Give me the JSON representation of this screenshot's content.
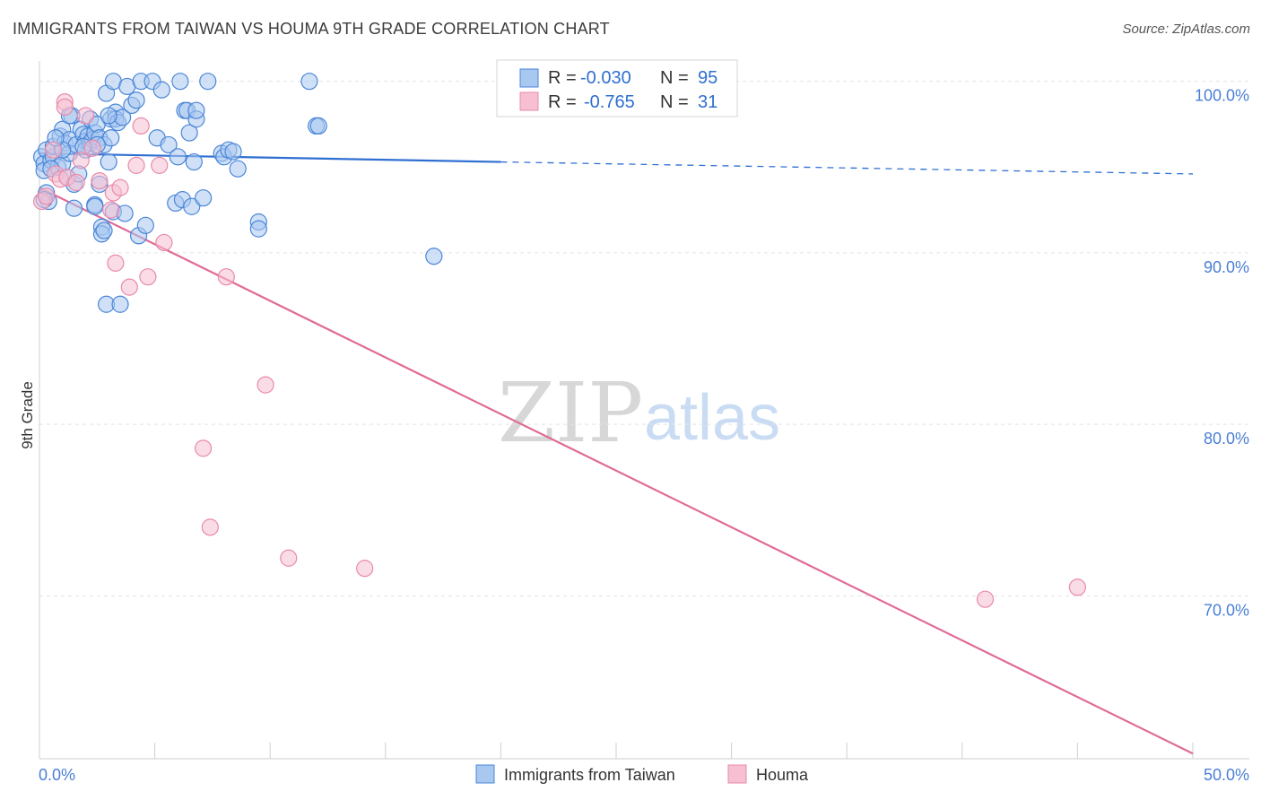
{
  "title": "IMMIGRANTS FROM TAIWAN VS HOUMA 9TH GRADE CORRELATION CHART",
  "source": "Source: ZipAtlas.com",
  "watermark": {
    "zip": "ZIP",
    "atlas": "atlas"
  },
  "colors": {
    "blue_fill": "#a9c8f0",
    "blue_stroke": "#4a86d8",
    "blue_line": "#2f6fd2",
    "pink_fill": "#f6c0d2",
    "pink_stroke": "#e88aaa",
    "pink_line": "#e06b97",
    "tick_label": "#4a7fd4",
    "grid": "#e3e3e3"
  },
  "chart_data": {
    "type": "scatter",
    "title": "IMMIGRANTS FROM TAIWAN VS HOUMA 9TH GRADE CORRELATION CHART",
    "xlabel": "",
    "ylabel": "9th Grade",
    "xlim": [
      0,
      50
    ],
    "ylim": [
      60.5,
      101.5
    ],
    "x_tick_labels": {
      "min": "0.0%",
      "max": "50.0%"
    },
    "y_ticks": [
      {
        "value": 100,
        "label": "100.0%"
      },
      {
        "value": 90,
        "label": "90.0%"
      },
      {
        "value": 80,
        "label": "80.0%"
      },
      {
        "value": 70,
        "label": "70.0%"
      }
    ],
    "legend_stats": [
      {
        "r_label": "R =",
        "r_value": "-0.030",
        "n_label": "N =",
        "n_value": "95"
      },
      {
        "r_label": "R =",
        "r_value": "-0.765",
        "n_label": "N =",
        "n_value": "31"
      }
    ],
    "series": [
      {
        "name": "Immigrants from Taiwan",
        "trend": {
          "x0": 0,
          "y0": 95.8,
          "x1": 20,
          "y1": 95.3,
          "dash_to_x": 50,
          "dash_to_y": 94.6
        },
        "points": [
          [
            0.1,
            95.6
          ],
          [
            0.2,
            95.2
          ],
          [
            0.2,
            94.8
          ],
          [
            0.3,
            93.5
          ],
          [
            0.3,
            96.0
          ],
          [
            0.4,
            93.0
          ],
          [
            0.5,
            95.4
          ],
          [
            0.6,
            95.6
          ],
          [
            0.6,
            96.2
          ],
          [
            0.8,
            95.0
          ],
          [
            0.9,
            96.8
          ],
          [
            1.0,
            97.2
          ],
          [
            1.0,
            95.2
          ],
          [
            1.1,
            96.4
          ],
          [
            1.2,
            94.4
          ],
          [
            1.3,
            96.6
          ],
          [
            1.3,
            95.8
          ],
          [
            1.4,
            98.0
          ],
          [
            1.5,
            94.0
          ],
          [
            1.5,
            92.6
          ],
          [
            1.6,
            96.3
          ],
          [
            1.7,
            94.6
          ],
          [
            1.8,
            97.2
          ],
          [
            1.9,
            96.9
          ],
          [
            2.0,
            96.5
          ],
          [
            2.0,
            96.0
          ],
          [
            2.1,
            96.8
          ],
          [
            2.2,
            96.4
          ],
          [
            2.2,
            97.8
          ],
          [
            2.3,
            96.6
          ],
          [
            2.4,
            92.8
          ],
          [
            2.4,
            97.0
          ],
          [
            2.5,
            97.5
          ],
          [
            2.6,
            96.7
          ],
          [
            2.6,
            94.0
          ],
          [
            2.7,
            91.5
          ],
          [
            2.7,
            91.1
          ],
          [
            2.8,
            96.3
          ],
          [
            2.9,
            99.3
          ],
          [
            2.9,
            87.0
          ],
          [
            3.0,
            95.3
          ],
          [
            3.1,
            96.7
          ],
          [
            3.1,
            97.8
          ],
          [
            3.2,
            92.4
          ],
          [
            3.2,
            100.0
          ],
          [
            3.3,
            98.2
          ],
          [
            3.3,
            97.8
          ],
          [
            3.4,
            97.6
          ],
          [
            3.5,
            87.0
          ],
          [
            3.6,
            97.9
          ],
          [
            3.7,
            92.3
          ],
          [
            3.8,
            99.7
          ],
          [
            4.0,
            98.6
          ],
          [
            4.2,
            98.9
          ],
          [
            4.3,
            91.0
          ],
          [
            4.4,
            100.0
          ],
          [
            4.6,
            91.6
          ],
          [
            4.9,
            100.0
          ],
          [
            5.1,
            96.7
          ],
          [
            5.3,
            99.5
          ],
          [
            5.6,
            96.3
          ],
          [
            5.9,
            92.9
          ],
          [
            6.0,
            95.6
          ],
          [
            6.1,
            100.0
          ],
          [
            6.2,
            93.1
          ],
          [
            6.3,
            98.3
          ],
          [
            6.4,
            98.3
          ],
          [
            6.5,
            97.0
          ],
          [
            6.6,
            92.7
          ],
          [
            6.7,
            95.3
          ],
          [
            6.8,
            97.8
          ],
          [
            6.8,
            98.3
          ],
          [
            7.1,
            93.2
          ],
          [
            7.3,
            100.0
          ],
          [
            7.9,
            95.8
          ],
          [
            8.0,
            95.6
          ],
          [
            8.2,
            96.0
          ],
          [
            8.4,
            95.9
          ],
          [
            8.6,
            94.9
          ],
          [
            9.5,
            91.8
          ],
          [
            9.5,
            91.4
          ],
          [
            11.7,
            100.0
          ],
          [
            12.0,
            97.4
          ],
          [
            12.1,
            97.4
          ],
          [
            17.1,
            89.8
          ],
          [
            2.4,
            92.7
          ],
          [
            1.0,
            96.0
          ],
          [
            0.7,
            96.7
          ],
          [
            2.5,
            96.3
          ],
          [
            3.0,
            98.0
          ],
          [
            1.9,
            96.2
          ],
          [
            0.5,
            94.9
          ],
          [
            2.8,
            91.3
          ],
          [
            0.2,
            93.1
          ],
          [
            1.3,
            98.0
          ]
        ]
      },
      {
        "name": "Houma",
        "trend": {
          "x0": 0,
          "y0": 93.8,
          "x1": 50,
          "y1": 60.8
        },
        "points": [
          [
            0.1,
            93.0
          ],
          [
            0.6,
            96.0
          ],
          [
            0.7,
            94.6
          ],
          [
            0.9,
            94.3
          ],
          [
            1.1,
            98.8
          ],
          [
            1.1,
            98.5
          ],
          [
            1.2,
            94.4
          ],
          [
            1.6,
            94.1
          ],
          [
            1.8,
            95.4
          ],
          [
            2.0,
            98.0
          ],
          [
            2.3,
            96.1
          ],
          [
            2.6,
            94.2
          ],
          [
            3.2,
            93.5
          ],
          [
            3.1,
            92.5
          ],
          [
            3.3,
            89.4
          ],
          [
            3.5,
            93.8
          ],
          [
            3.9,
            88.0
          ],
          [
            4.2,
            95.1
          ],
          [
            4.4,
            97.4
          ],
          [
            4.7,
            88.6
          ],
          [
            5.2,
            95.1
          ],
          [
            5.4,
            90.6
          ],
          [
            7.1,
            78.6
          ],
          [
            7.4,
            74.0
          ],
          [
            8.1,
            88.6
          ],
          [
            9.8,
            82.3
          ],
          [
            10.8,
            72.2
          ],
          [
            14.1,
            71.6
          ],
          [
            41.0,
            69.8
          ],
          [
            45.0,
            70.5
          ],
          [
            0.3,
            93.3
          ]
        ]
      }
    ]
  }
}
